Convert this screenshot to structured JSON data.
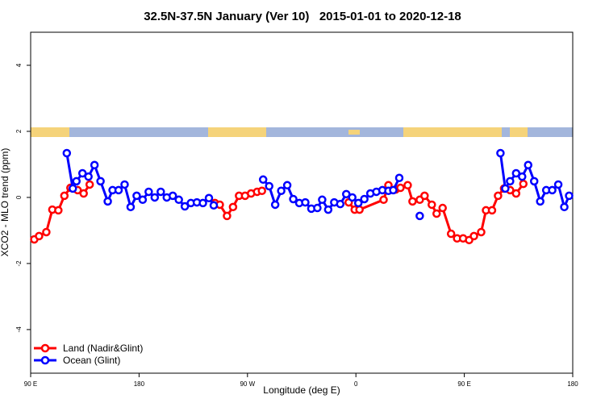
{
  "chart_data": {
    "type": "line",
    "title": "32.5N-37.5N January (Ver 10)   2015-01-01 to 2020-12-18",
    "x_label": "Longitude (deg E)",
    "y_label": "XCO2 - MLO trend (ppm)",
    "xlim": [
      90,
      540
    ],
    "xticks": [
      {
        "value": 90,
        "label": "90 E"
      },
      {
        "value": 180,
        "label": "180"
      },
      {
        "value": 270,
        "label": "90 W"
      },
      {
        "value": 360,
        "label": "0"
      },
      {
        "value": 450,
        "label": "90 E"
      },
      {
        "value": 540,
        "label": "180"
      }
    ],
    "ylim": [
      -5.32,
      5
    ],
    "yticks": [
      -4,
      -2,
      0,
      2,
      4
    ],
    "legend": "bottom left",
    "series": [
      {
        "name": "Land (Nadir&Glint)",
        "color": "#ff0000",
        "x": [
          93,
          97,
          103,
          108,
          113,
          118,
          123,
          null,
          129,
          134,
          139,
          null,
          243,
          247,
          253,
          258,
          263,
          268,
          273,
          278,
          282,
          null,
          354,
          359,
          363,
          383,
          387,
          393,
          397,
          403,
          407,
          413,
          417,
          423,
          427,
          432,
          439,
          444,
          449,
          454,
          458,
          464,
          468,
          473,
          478,
          483,
          null,
          488,
          493,
          499
        ],
        "values": [
          -1.27,
          -1.17,
          -1.05,
          -0.37,
          -0.39,
          0.05,
          0.29,
          null,
          0.22,
          0.12,
          0.39,
          null,
          -0.17,
          -0.22,
          -0.56,
          -0.29,
          0.05,
          0.05,
          0.12,
          0.17,
          0.2,
          null,
          -0.15,
          -0.37,
          -0.37,
          -0.07,
          0.37,
          0.24,
          0.29,
          0.37,
          -0.12,
          -0.07,
          0.05,
          -0.22,
          -0.49,
          -0.32,
          -1.1,
          -1.24,
          -1.24,
          -1.29,
          -1.17,
          -1.05,
          -0.39,
          -0.39,
          0.05,
          0.27,
          null,
          0.22,
          0.12,
          0.41
        ]
      },
      {
        "name": "Ocean (Glint)",
        "color": "#0000ff",
        "x": [
          120,
          125,
          128,
          133,
          138,
          143,
          148,
          154,
          158,
          163,
          168,
          173,
          178,
          183,
          188,
          193,
          198,
          203,
          208,
          213,
          218,
          223,
          228,
          233,
          238,
          242,
          null,
          283,
          288,
          293,
          298,
          303,
          308,
          313,
          318,
          323,
          328,
          332,
          337,
          342,
          347,
          352,
          357,
          362,
          367,
          372,
          377,
          382,
          387,
          391,
          396,
          null,
          413,
          null,
          480,
          484,
          488,
          493,
          498,
          503,
          508,
          513,
          518,
          523,
          528,
          533,
          537
        ],
        "values": [
          1.34,
          0.27,
          0.49,
          0.73,
          0.63,
          0.98,
          0.49,
          -0.12,
          0.22,
          0.22,
          0.39,
          -0.29,
          0.05,
          -0.07,
          0.17,
          0,
          0.17,
          0,
          0.05,
          -0.07,
          -0.27,
          -0.17,
          -0.15,
          -0.17,
          -0.02,
          -0.24,
          null,
          0.54,
          0.34,
          -0.22,
          0.2,
          0.37,
          -0.05,
          -0.17,
          -0.15,
          -0.34,
          -0.32,
          -0.07,
          -0.37,
          -0.15,
          -0.2,
          0.1,
          0,
          -0.17,
          -0.05,
          0.12,
          0.17,
          0.22,
          0.2,
          0.22,
          0.59,
          null,
          -0.56,
          null,
          1.34,
          0.27,
          0.49,
          0.73,
          0.63,
          0.98,
          0.49,
          -0.12,
          0.22,
          0.22,
          0.39,
          -0.29,
          0.05
        ]
      }
    ]
  }
}
